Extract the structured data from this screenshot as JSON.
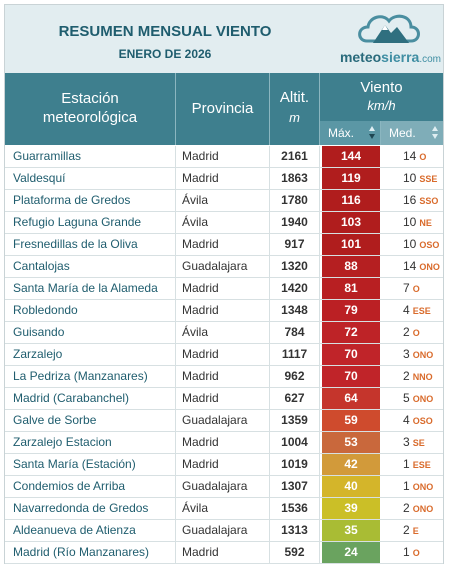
{
  "header": {
    "title": "RESUMEN MENSUAL VIENTO",
    "subtitle": "ENERO DE 2026",
    "logo": {
      "name": "meteo",
      "accent": "sierra",
      "domain": ".com"
    }
  },
  "columns": {
    "station": [
      "Estación",
      "meteorológica"
    ],
    "province": "Provincia",
    "altitude": "Altit.",
    "altitude_unit": "m",
    "wind": "Viento",
    "wind_unit": "km/h",
    "max": "Máx.",
    "med": "Med."
  },
  "rows": [
    {
      "name": "Guarramillas",
      "province": "Madrid",
      "alt": "2161",
      "max": "144",
      "med": "14",
      "dir": "O",
      "color": "#b01d1d"
    },
    {
      "name": "Valdesquí",
      "province": "Madrid",
      "alt": "1863",
      "max": "119",
      "med": "10",
      "dir": "SSE",
      "color": "#b01d1d"
    },
    {
      "name": "Plataforma de Gredos",
      "province": "Ávila",
      "alt": "1780",
      "max": "116",
      "med": "16",
      "dir": "SSO",
      "color": "#b01d1d"
    },
    {
      "name": "Refugio Laguna Grande",
      "province": "Ávila",
      "alt": "1940",
      "max": "103",
      "med": "10",
      "dir": "NE",
      "color": "#b01d1d"
    },
    {
      "name": "Fresnedillas de la Oliva",
      "province": "Madrid",
      "alt": "917",
      "max": "101",
      "med": "10",
      "dir": "OSO",
      "color": "#b01d1d"
    },
    {
      "name": "Cantalojas",
      "province": "Guadalajara",
      "alt": "1320",
      "max": "88",
      "med": "14",
      "dir": "ONO",
      "color": "#b51f21"
    },
    {
      "name": "Santa María de la Alameda",
      "province": "Madrid",
      "alt": "1420",
      "max": "81",
      "med": "7",
      "dir": "O",
      "color": "#b81f22"
    },
    {
      "name": "Robledondo",
      "province": "Madrid",
      "alt": "1348",
      "max": "79",
      "med": "4",
      "dir": "ESE",
      "color": "#bb2024"
    },
    {
      "name": "Guisando",
      "province": "Ávila",
      "alt": "784",
      "max": "72",
      "med": "2",
      "dir": "O",
      "color": "#be2327"
    },
    {
      "name": "Zarzalejo",
      "province": "Madrid",
      "alt": "1117",
      "max": "70",
      "med": "3",
      "dir": "ONO",
      "color": "#c02429"
    },
    {
      "name": "La Pedriza (Manzanares)",
      "province": "Madrid",
      "alt": "962",
      "max": "70",
      "med": "2",
      "dir": "NNO",
      "color": "#c02429"
    },
    {
      "name": "Madrid (Carabanchel)",
      "province": "Madrid",
      "alt": "627",
      "max": "64",
      "med": "5",
      "dir": "ONO",
      "color": "#c5352c"
    },
    {
      "name": "Galve de Sorbe",
      "province": "Guadalajara",
      "alt": "1359",
      "max": "59",
      "med": "4",
      "dir": "OSO",
      "color": "#cf4b2d"
    },
    {
      "name": "Zarzalejo Estacion",
      "province": "Madrid",
      "alt": "1004",
      "max": "53",
      "med": "3",
      "dir": "SE",
      "color": "#c9683c"
    },
    {
      "name": "Santa María (Estación)",
      "province": "Madrid",
      "alt": "1019",
      "max": "42",
      "med": "1",
      "dir": "ESE",
      "color": "#d29a3a"
    },
    {
      "name": "Condemios de Arriba",
      "province": "Guadalajara",
      "alt": "1307",
      "max": "40",
      "med": "1",
      "dir": "ONO",
      "color": "#d4b52a"
    },
    {
      "name": "Navarredonda de Gredos",
      "province": "Ávila",
      "alt": "1536",
      "max": "39",
      "med": "2",
      "dir": "ONO",
      "color": "#cbbf27"
    },
    {
      "name": "Aldeanueva de Atienza",
      "province": "Guadalajara",
      "alt": "1313",
      "max": "35",
      "med": "2",
      "dir": "E",
      "color": "#a9bc34"
    },
    {
      "name": "Madrid (Río Manzanares)",
      "province": "Madrid",
      "alt": "592",
      "max": "24",
      "med": "1",
      "dir": "O",
      "color": "#6aa35f"
    }
  ]
}
